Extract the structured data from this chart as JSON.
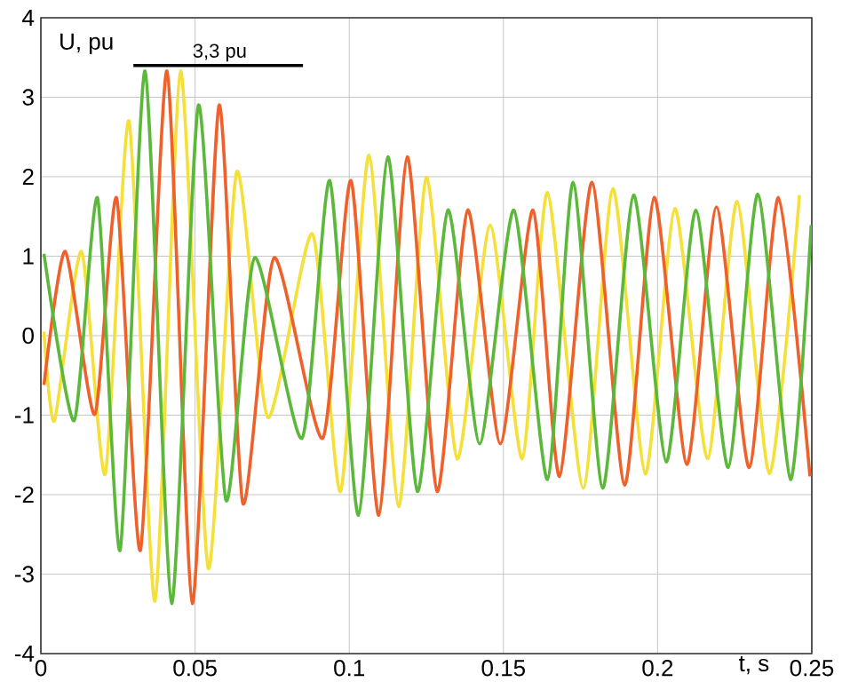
{
  "chart_data": {
    "type": "line",
    "xlabel": "t, s",
    "ylabel": "U, pu",
    "xlim": [
      0,
      0.25
    ],
    "ylim": [
      -4,
      4
    ],
    "xticks": [
      0,
      0.05,
      0.1,
      0.15,
      0.2,
      0.25
    ],
    "yticks": [
      -4,
      -3,
      -2,
      -1,
      0,
      1,
      2,
      3,
      4
    ],
    "grid": true,
    "annotations": [
      {
        "text": "3,3 pu",
        "x": 0.058,
        "y": 3.4
      }
    ],
    "series": [
      {
        "color": "#f5e03a",
        "x": [
          0.001,
          0.0044,
          0.0132,
          0.0209,
          0.0286,
          0.037,
          0.0453,
          0.0543,
          0.0635,
          0.0736,
          0.0881,
          0.0972,
          0.1064,
          0.116,
          0.125,
          0.135,
          0.1457,
          0.1561,
          0.1643,
          0.1759,
          0.1855,
          0.196,
          0.2056,
          0.2162,
          0.2258,
          0.2363,
          0.246
        ],
        "values": [
          0.05,
          -1.07,
          1.06,
          -1.74,
          2.7,
          -3.34,
          3.33,
          -2.93,
          2.06,
          -1.03,
          1.28,
          -1.96,
          2.27,
          -2.15,
          1.99,
          -1.55,
          1.39,
          -1.55,
          1.8,
          -1.92,
          1.85,
          -1.74,
          1.6,
          -1.55,
          1.69,
          -1.74,
          1.77
        ]
      },
      {
        "color": "#f0602a",
        "x": [
          0.001,
          0.0079,
          0.0175,
          0.0246,
          0.0323,
          0.0409,
          0.0491,
          0.0578,
          0.0655,
          0.0756,
          0.0914,
          0.1006,
          0.1096,
          0.1188,
          0.1285,
          0.1384,
          0.149,
          0.1596,
          0.1682,
          0.1787,
          0.1893,
          0.1989,
          0.2095,
          0.2191,
          0.2297,
          0.2392,
          0.2494
        ],
        "values": [
          -0.62,
          1.06,
          -0.99,
          1.73,
          -2.7,
          3.33,
          -3.37,
          2.9,
          -2.11,
          0.98,
          -1.29,
          1.95,
          -2.26,
          2.25,
          -1.96,
          1.58,
          -1.36,
          1.58,
          -1.77,
          1.93,
          -1.88,
          1.74,
          -1.62,
          1.62,
          -1.66,
          1.74,
          -1.77
        ]
      },
      {
        "color": "#5cb83a",
        "x": [
          0.001,
          0.0108,
          0.0184,
          0.0257,
          0.0338,
          0.0424,
          0.0511,
          0.06,
          0.0693,
          0.0847,
          0.0937,
          0.103,
          0.1125,
          0.1221,
          0.132,
          0.1423,
          0.1534,
          0.1643,
          0.1726,
          0.1822,
          0.1922,
          0.2028,
          0.2124,
          0.2229,
          0.2325,
          0.2431,
          0.2498
        ],
        "values": [
          1.03,
          -1.07,
          1.73,
          -2.7,
          3.33,
          -3.37,
          2.9,
          -2.07,
          0.98,
          -1.29,
          1.95,
          -2.26,
          2.25,
          -1.96,
          1.58,
          -1.36,
          1.58,
          -1.81,
          1.93,
          -1.92,
          1.77,
          -1.59,
          1.58,
          -1.66,
          1.78,
          -1.81,
          1.39
        ]
      },
      {
        "type": "line",
        "color": "#000000",
        "x": [
          0.03,
          0.085
        ],
        "values": [
          3.4,
          3.4
        ]
      }
    ]
  }
}
